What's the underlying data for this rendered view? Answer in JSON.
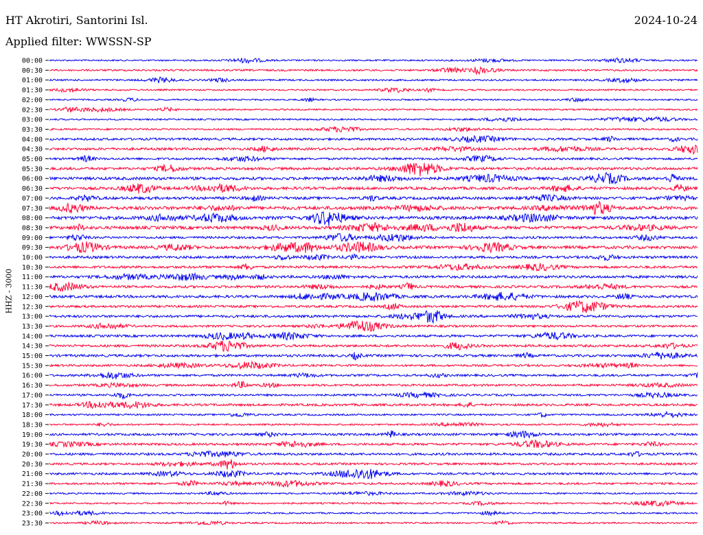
{
  "header": {
    "station": "HT Akrotiri, Santorini Isl.",
    "date": "2024-10-24",
    "filter": "Applied filter: WWSSN-SP"
  },
  "chart_data": {
    "type": "line",
    "title": "HT Akrotiri, Santorini Isl.",
    "subtitle": "Applied filter: WWSSN-SP",
    "date": "2024-10-24",
    "ylabel": "HHZ - 3000",
    "xlabel": "",
    "trace_colors": [
      "#0000ee",
      "#ff0033"
    ],
    "grid": false,
    "series": [
      {
        "label": "00:00",
        "color": "#0000ee",
        "activity": 0.1
      },
      {
        "label": "00:30",
        "color": "#ff0033",
        "activity": 0.18
      },
      {
        "label": "01:00",
        "color": "#0000ee",
        "activity": 0.15
      },
      {
        "label": "01:30",
        "color": "#ff0033",
        "activity": 0.12
      },
      {
        "label": "02:00",
        "color": "#0000ee",
        "activity": 0.08
      },
      {
        "label": "02:30",
        "color": "#ff0033",
        "activity": 0.1
      },
      {
        "label": "03:00",
        "color": "#0000ee",
        "activity": 0.12
      },
      {
        "label": "03:30",
        "color": "#ff0033",
        "activity": 0.16
      },
      {
        "label": "04:00",
        "color": "#0000ee",
        "activity": 0.35
      },
      {
        "label": "04:30",
        "color": "#ff0033",
        "activity": 0.4
      },
      {
        "label": "05:00",
        "color": "#0000ee",
        "activity": 0.3
      },
      {
        "label": "05:30",
        "color": "#ff0033",
        "activity": 0.45
      },
      {
        "label": "06:00",
        "color": "#0000ee",
        "activity": 0.55
      },
      {
        "label": "06:30",
        "color": "#ff0033",
        "activity": 0.5
      },
      {
        "label": "07:00",
        "color": "#0000ee",
        "activity": 0.5
      },
      {
        "label": "07:30",
        "color": "#ff0033",
        "activity": 0.7
      },
      {
        "label": "08:00",
        "color": "#0000ee",
        "activity": 0.65
      },
      {
        "label": "08:30",
        "color": "#ff0033",
        "activity": 0.6
      },
      {
        "label": "09:00",
        "color": "#0000ee",
        "activity": 0.35
      },
      {
        "label": "09:30",
        "color": "#ff0033",
        "activity": 0.55
      },
      {
        "label": "10:00",
        "color": "#0000ee",
        "activity": 0.4
      },
      {
        "label": "10:30",
        "color": "#ff0033",
        "activity": 0.4
      },
      {
        "label": "11:00",
        "color": "#0000ee",
        "activity": 0.45
      },
      {
        "label": "11:30",
        "color": "#ff0033",
        "activity": 0.4
      },
      {
        "label": "12:00",
        "color": "#0000ee",
        "activity": 0.45
      },
      {
        "label": "12:30",
        "color": "#ff0033",
        "activity": 0.35
      },
      {
        "label": "13:00",
        "color": "#0000ee",
        "activity": 0.4
      },
      {
        "label": "13:30",
        "color": "#ff0033",
        "activity": 0.3
      },
      {
        "label": "14:00",
        "color": "#0000ee",
        "activity": 0.35
      },
      {
        "label": "14:30",
        "color": "#ff0033",
        "activity": 0.4
      },
      {
        "label": "15:00",
        "color": "#0000ee",
        "activity": 0.4
      },
      {
        "label": "15:30",
        "color": "#ff0033",
        "activity": 0.28
      },
      {
        "label": "16:00",
        "color": "#0000ee",
        "activity": 0.3
      },
      {
        "label": "16:30",
        "color": "#ff0033",
        "activity": 0.3
      },
      {
        "label": "17:00",
        "color": "#0000ee",
        "activity": 0.25
      },
      {
        "label": "17:30",
        "color": "#ff0033",
        "activity": 0.35
      },
      {
        "label": "18:00",
        "color": "#0000ee",
        "activity": 0.15
      },
      {
        "label": "18:30",
        "color": "#ff0033",
        "activity": 0.15
      },
      {
        "label": "19:00",
        "color": "#0000ee",
        "activity": 0.35
      },
      {
        "label": "19:30",
        "color": "#ff0033",
        "activity": 0.35
      },
      {
        "label": "20:00",
        "color": "#0000ee",
        "activity": 0.35
      },
      {
        "label": "20:30",
        "color": "#ff0033",
        "activity": 0.3
      },
      {
        "label": "21:00",
        "color": "#0000ee",
        "activity": 0.3
      },
      {
        "label": "21:30",
        "color": "#ff0033",
        "activity": 0.28
      },
      {
        "label": "22:00",
        "color": "#0000ee",
        "activity": 0.12
      },
      {
        "label": "22:30",
        "color": "#ff0033",
        "activity": 0.15
      },
      {
        "label": "23:00",
        "color": "#0000ee",
        "activity": 0.1
      },
      {
        "label": "23:30",
        "color": "#ff0033",
        "activity": 0.12
      }
    ]
  }
}
